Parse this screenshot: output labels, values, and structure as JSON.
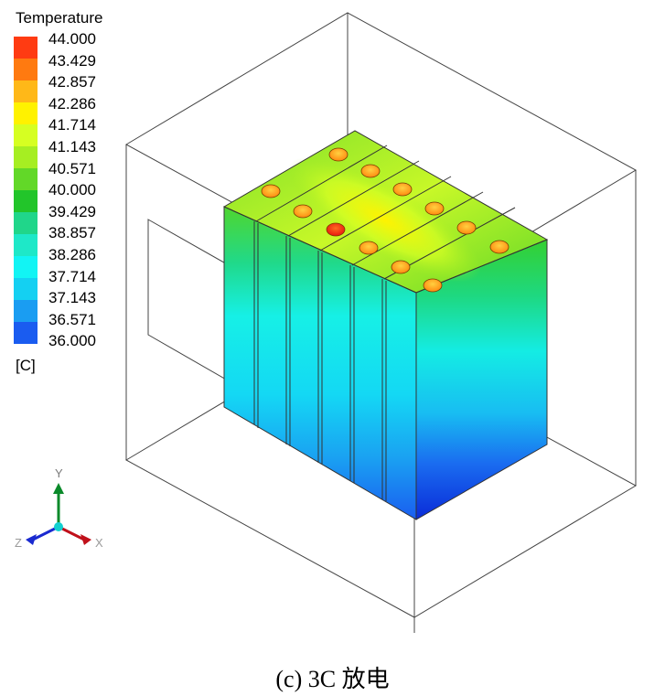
{
  "legend": {
    "title": "Temperature",
    "unit": "[C]",
    "values": [
      "44.000",
      "43.429",
      "42.857",
      "42.286",
      "41.714",
      "41.143",
      "40.571",
      "40.000",
      "39.429",
      "38.857",
      "38.286",
      "37.714",
      "37.143",
      "36.571",
      "36.000"
    ],
    "colors": [
      "#ff3b12",
      "#ff7a10",
      "#ffb818",
      "#fff200",
      "#d6ff22",
      "#a6ee22",
      "#62d828",
      "#22c52a",
      "#20d68a",
      "#1ee8c8",
      "#12f4f4",
      "#14d0f2",
      "#1a9df2",
      "#1a5cf0",
      "#0a2bd8"
    ]
  },
  "axes": {
    "x": "X",
    "y": "Y",
    "z": "Z"
  },
  "caption": "(c) 3C 放电"
}
